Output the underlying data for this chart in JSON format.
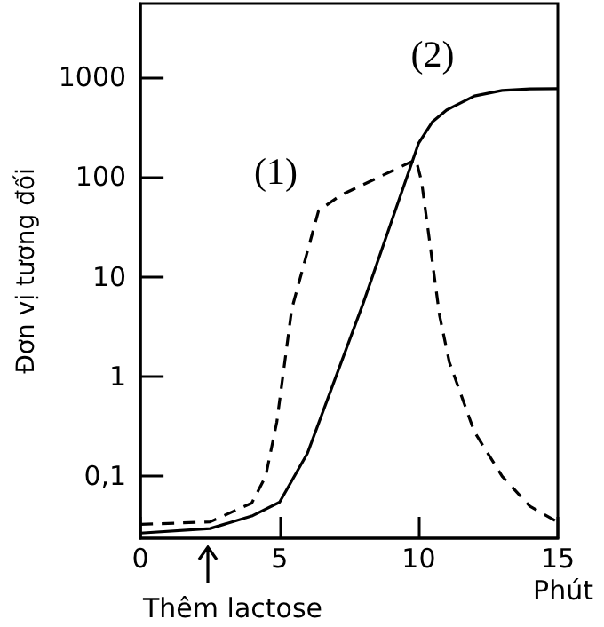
{
  "chart_data": {
    "type": "line",
    "xlabel": "Phút",
    "ylabel": "Đơn vị tương đối",
    "log": "y",
    "grid": false,
    "marker": "none",
    "xlim": [
      0,
      15
    ],
    "xticks": [
      0,
      5,
      10,
      15
    ],
    "ylim": [
      0.024,
      5500
    ],
    "yticks": [
      {
        "value": 0.1,
        "label": "0,1"
      },
      1,
      10,
      100,
      1000
    ],
    "series": [
      {
        "name": "(1)",
        "color": "#000000",
        "line_style": "dashed",
        "x": [
          0,
          2.5,
          4,
          4.5,
          4.9,
          5.44,
          6.4,
          7.2,
          9.9,
          10.1,
          10.75,
          11.1,
          12,
          13,
          14,
          14.9
        ],
        "values": [
          0.033,
          0.035,
          0.054,
          0.1,
          0.35,
          4.8,
          46,
          66,
          150,
          92,
          4.1,
          1.4,
          0.28,
          0.1,
          0.05,
          0.036
        ]
      },
      {
        "name": "(2)",
        "color": "#000000",
        "line_style": "solid",
        "x": [
          0,
          2.5,
          4,
          5,
          6,
          8,
          10,
          10.5,
          11,
          12,
          13,
          14,
          15
        ],
        "values": [
          0.027,
          0.03,
          0.04,
          0.055,
          0.17,
          5.4,
          220,
          360,
          470,
          650,
          740,
          765,
          770
        ]
      }
    ],
    "annotations": [
      "Thêm lactose"
    ]
  }
}
